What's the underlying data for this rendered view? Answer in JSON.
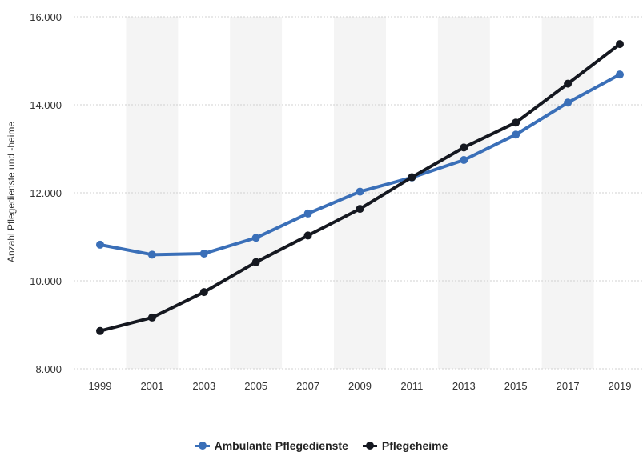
{
  "chart_data": {
    "type": "line",
    "ylabel": "Anzahl Pflegedienste und -heime",
    "xlabel": "",
    "x": [
      "1999",
      "2001",
      "2003",
      "2005",
      "2007",
      "2009",
      "2011",
      "2013",
      "2015",
      "2017",
      "2019"
    ],
    "ylim": [
      8000,
      16000
    ],
    "yticks": [
      8000,
      10000,
      12000,
      14000,
      16000
    ],
    "ytick_labels": [
      "8.000",
      "10.000",
      "12.000",
      "14.000",
      "16.000"
    ],
    "grid": true,
    "legend_position": "bottom",
    "series": [
      {
        "name": "Ambulante Pflegedienste",
        "color": "#3a6fb8",
        "values": [
          10820,
          10594,
          10619,
          10977,
          11529,
          12026,
          12349,
          12745,
          13323,
          14050,
          14688
        ]
      },
      {
        "name": "Pflegeheime",
        "color": "#151820",
        "values": [
          8859,
          9165,
          9743,
          10424,
          11029,
          11634,
          12354,
          13030,
          13596,
          14480,
          15380
        ]
      }
    ]
  }
}
